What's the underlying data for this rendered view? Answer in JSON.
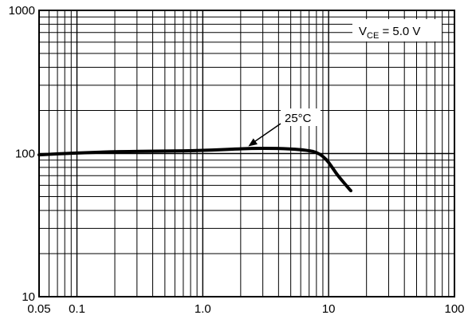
{
  "chart_data": {
    "type": "line",
    "x_scale": "log",
    "y_scale": "log",
    "xlim": [
      0.05,
      100
    ],
    "ylim": [
      10,
      1000
    ],
    "grid": true,
    "x_tick_labels": [
      "0.05",
      "0.1",
      "1.0",
      "10",
      "100"
    ],
    "x_tick_values": [
      0.05,
      0.1,
      1,
      10,
      100
    ],
    "y_tick_labels": [
      "10",
      "100",
      "1000"
    ],
    "y_tick_values": [
      10,
      100,
      1000
    ],
    "series": [
      {
        "name": "25°C",
        "x": [
          0.05,
          0.1,
          0.2,
          0.5,
          1.0,
          2.0,
          3.0,
          5.0,
          7.0,
          8.0,
          9.0,
          10.0,
          11.0,
          12.0,
          14.0,
          15.0
        ],
        "y": [
          98,
          101,
          103,
          104,
          105,
          108,
          109,
          108,
          105,
          102,
          96,
          87,
          77,
          69,
          59,
          55
        ]
      }
    ],
    "annotations": {
      "condition": {
        "prefix": "V",
        "subscript": "CE",
        "suffix": " = 5.0 V"
      },
      "curve_label": "25°C"
    }
  }
}
